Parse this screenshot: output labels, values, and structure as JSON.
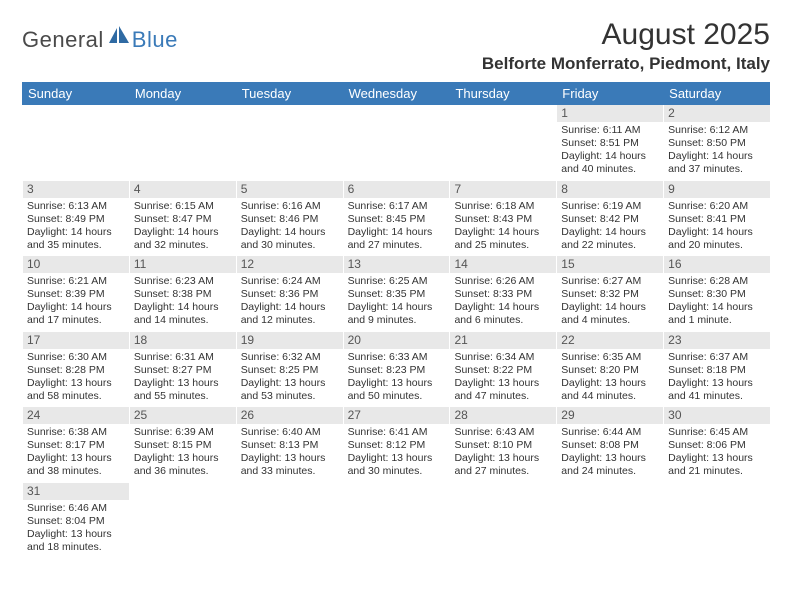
{
  "logo": {
    "part1": "General",
    "part2": "Blue"
  },
  "title": "August 2025",
  "location": "Belforte Monferrato, Piedmont, Italy",
  "colors": {
    "header_bg": "#3a7ab8",
    "header_fg": "#ffffff",
    "daynum_bg": "#e8e8e8",
    "text": "#333333"
  },
  "day_headers": [
    "Sunday",
    "Monday",
    "Tuesday",
    "Wednesday",
    "Thursday",
    "Friday",
    "Saturday"
  ],
  "weeks": [
    [
      null,
      null,
      null,
      null,
      null,
      {
        "n": "1",
        "sr": "Sunrise: 6:11 AM",
        "ss": "Sunset: 8:51 PM",
        "d1": "Daylight: 14 hours",
        "d2": "and 40 minutes."
      },
      {
        "n": "2",
        "sr": "Sunrise: 6:12 AM",
        "ss": "Sunset: 8:50 PM",
        "d1": "Daylight: 14 hours",
        "d2": "and 37 minutes."
      }
    ],
    [
      {
        "n": "3",
        "sr": "Sunrise: 6:13 AM",
        "ss": "Sunset: 8:49 PM",
        "d1": "Daylight: 14 hours",
        "d2": "and 35 minutes."
      },
      {
        "n": "4",
        "sr": "Sunrise: 6:15 AM",
        "ss": "Sunset: 8:47 PM",
        "d1": "Daylight: 14 hours",
        "d2": "and 32 minutes."
      },
      {
        "n": "5",
        "sr": "Sunrise: 6:16 AM",
        "ss": "Sunset: 8:46 PM",
        "d1": "Daylight: 14 hours",
        "d2": "and 30 minutes."
      },
      {
        "n": "6",
        "sr": "Sunrise: 6:17 AM",
        "ss": "Sunset: 8:45 PM",
        "d1": "Daylight: 14 hours",
        "d2": "and 27 minutes."
      },
      {
        "n": "7",
        "sr": "Sunrise: 6:18 AM",
        "ss": "Sunset: 8:43 PM",
        "d1": "Daylight: 14 hours",
        "d2": "and 25 minutes."
      },
      {
        "n": "8",
        "sr": "Sunrise: 6:19 AM",
        "ss": "Sunset: 8:42 PM",
        "d1": "Daylight: 14 hours",
        "d2": "and 22 minutes."
      },
      {
        "n": "9",
        "sr": "Sunrise: 6:20 AM",
        "ss": "Sunset: 8:41 PM",
        "d1": "Daylight: 14 hours",
        "d2": "and 20 minutes."
      }
    ],
    [
      {
        "n": "10",
        "sr": "Sunrise: 6:21 AM",
        "ss": "Sunset: 8:39 PM",
        "d1": "Daylight: 14 hours",
        "d2": "and 17 minutes."
      },
      {
        "n": "11",
        "sr": "Sunrise: 6:23 AM",
        "ss": "Sunset: 8:38 PM",
        "d1": "Daylight: 14 hours",
        "d2": "and 14 minutes."
      },
      {
        "n": "12",
        "sr": "Sunrise: 6:24 AM",
        "ss": "Sunset: 8:36 PM",
        "d1": "Daylight: 14 hours",
        "d2": "and 12 minutes."
      },
      {
        "n": "13",
        "sr": "Sunrise: 6:25 AM",
        "ss": "Sunset: 8:35 PM",
        "d1": "Daylight: 14 hours",
        "d2": "and 9 minutes."
      },
      {
        "n": "14",
        "sr": "Sunrise: 6:26 AM",
        "ss": "Sunset: 8:33 PM",
        "d1": "Daylight: 14 hours",
        "d2": "and 6 minutes."
      },
      {
        "n": "15",
        "sr": "Sunrise: 6:27 AM",
        "ss": "Sunset: 8:32 PM",
        "d1": "Daylight: 14 hours",
        "d2": "and 4 minutes."
      },
      {
        "n": "16",
        "sr": "Sunrise: 6:28 AM",
        "ss": "Sunset: 8:30 PM",
        "d1": "Daylight: 14 hours",
        "d2": "and 1 minute."
      }
    ],
    [
      {
        "n": "17",
        "sr": "Sunrise: 6:30 AM",
        "ss": "Sunset: 8:28 PM",
        "d1": "Daylight: 13 hours",
        "d2": "and 58 minutes."
      },
      {
        "n": "18",
        "sr": "Sunrise: 6:31 AM",
        "ss": "Sunset: 8:27 PM",
        "d1": "Daylight: 13 hours",
        "d2": "and 55 minutes."
      },
      {
        "n": "19",
        "sr": "Sunrise: 6:32 AM",
        "ss": "Sunset: 8:25 PM",
        "d1": "Daylight: 13 hours",
        "d2": "and 53 minutes."
      },
      {
        "n": "20",
        "sr": "Sunrise: 6:33 AM",
        "ss": "Sunset: 8:23 PM",
        "d1": "Daylight: 13 hours",
        "d2": "and 50 minutes."
      },
      {
        "n": "21",
        "sr": "Sunrise: 6:34 AM",
        "ss": "Sunset: 8:22 PM",
        "d1": "Daylight: 13 hours",
        "d2": "and 47 minutes."
      },
      {
        "n": "22",
        "sr": "Sunrise: 6:35 AM",
        "ss": "Sunset: 8:20 PM",
        "d1": "Daylight: 13 hours",
        "d2": "and 44 minutes."
      },
      {
        "n": "23",
        "sr": "Sunrise: 6:37 AM",
        "ss": "Sunset: 8:18 PM",
        "d1": "Daylight: 13 hours",
        "d2": "and 41 minutes."
      }
    ],
    [
      {
        "n": "24",
        "sr": "Sunrise: 6:38 AM",
        "ss": "Sunset: 8:17 PM",
        "d1": "Daylight: 13 hours",
        "d2": "and 38 minutes."
      },
      {
        "n": "25",
        "sr": "Sunrise: 6:39 AM",
        "ss": "Sunset: 8:15 PM",
        "d1": "Daylight: 13 hours",
        "d2": "and 36 minutes."
      },
      {
        "n": "26",
        "sr": "Sunrise: 6:40 AM",
        "ss": "Sunset: 8:13 PM",
        "d1": "Daylight: 13 hours",
        "d2": "and 33 minutes."
      },
      {
        "n": "27",
        "sr": "Sunrise: 6:41 AM",
        "ss": "Sunset: 8:12 PM",
        "d1": "Daylight: 13 hours",
        "d2": "and 30 minutes."
      },
      {
        "n": "28",
        "sr": "Sunrise: 6:43 AM",
        "ss": "Sunset: 8:10 PM",
        "d1": "Daylight: 13 hours",
        "d2": "and 27 minutes."
      },
      {
        "n": "29",
        "sr": "Sunrise: 6:44 AM",
        "ss": "Sunset: 8:08 PM",
        "d1": "Daylight: 13 hours",
        "d2": "and 24 minutes."
      },
      {
        "n": "30",
        "sr": "Sunrise: 6:45 AM",
        "ss": "Sunset: 8:06 PM",
        "d1": "Daylight: 13 hours",
        "d2": "and 21 minutes."
      }
    ],
    [
      {
        "n": "31",
        "sr": "Sunrise: 6:46 AM",
        "ss": "Sunset: 8:04 PM",
        "d1": "Daylight: 13 hours",
        "d2": "and 18 minutes."
      },
      null,
      null,
      null,
      null,
      null,
      null
    ]
  ]
}
